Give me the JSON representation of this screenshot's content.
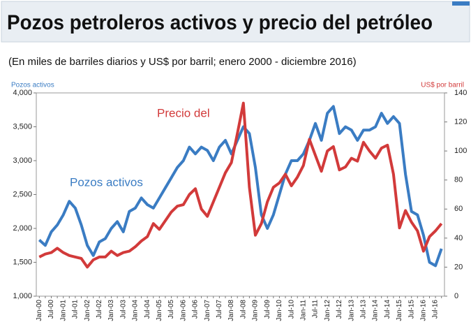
{
  "chart_data": {
    "type": "line",
    "title": "Pozos petroleros activos y precio del petróleo",
    "subtitle": "(En miles de barriles diarios y US$ por barril; enero 2000 - diciembre 2016)",
    "ylabel": "Pozos activos",
    "y2label": "US$ por barril",
    "categories": [
      "Jan-00",
      null,
      "Jul-00",
      null,
      "Jan-01",
      null,
      "Jul-01",
      null,
      "Jan-02",
      null,
      "Jul-02",
      null,
      "Jan-03",
      null,
      "Jul-03",
      null,
      "Jan-04",
      null,
      "Jul-04",
      null,
      "Jan-05",
      null,
      "Jul-05",
      null,
      "Jan-06",
      null,
      "Jul-06",
      null,
      "Jan-07",
      null,
      "Jul-07",
      null,
      "Jan-08",
      null,
      "Jul-08",
      null,
      "Jan-09",
      null,
      "Jul-09",
      null,
      "Jan-10",
      null,
      "Jul-10",
      null,
      "Jan-11",
      null,
      "Jul-11",
      null,
      "Jan-12",
      null,
      "Jul-12",
      null,
      "Jan-13",
      null,
      "Jul-13",
      null,
      "Jan-14",
      null,
      "Jul-14",
      null,
      "Jan-15",
      null,
      "Jul-15",
      null,
      "Jan-16",
      null,
      "Jul-16",
      null
    ],
    "series": [
      {
        "name": "Pozos activos",
        "color": "#3a7cc3",
        "axis": "y",
        "values": [
          1830,
          1750,
          1950,
          2050,
          2200,
          2400,
          2300,
          2050,
          1750,
          1600,
          1800,
          1850,
          2000,
          2100,
          1950,
          2250,
          2300,
          2450,
          2350,
          2300,
          2450,
          2600,
          2750,
          2900,
          3000,
          3200,
          3100,
          3200,
          3150,
          3000,
          3200,
          3300,
          3100,
          3300,
          3500,
          3400,
          2900,
          2200,
          2000,
          2200,
          2500,
          2800,
          3000,
          3000,
          3100,
          3300,
          3550,
          3300,
          3700,
          3800,
          3400,
          3500,
          3450,
          3300,
          3450,
          3450,
          3500,
          3700,
          3550,
          3650,
          3550,
          2800,
          2250,
          2200,
          1900,
          1500,
          1450,
          1700
        ]
      },
      {
        "name": "Precio del",
        "color": "#d23a3a",
        "axis": "y2",
        "values": [
          27,
          29,
          30,
          33,
          30,
          28,
          27,
          26,
          20,
          25,
          27,
          27,
          31,
          28,
          30,
          31,
          34,
          38,
          41,
          50,
          46,
          52,
          58,
          62,
          63,
          70,
          74,
          60,
          55,
          65,
          75,
          85,
          92,
          112,
          133,
          75,
          42,
          50,
          65,
          75,
          78,
          84,
          76,
          82,
          90,
          108,
          97,
          86,
          100,
          103,
          87,
          89,
          95,
          93,
          106,
          100,
          95,
          102,
          104,
          84,
          47,
          59,
          51,
          45,
          31,
          41,
          45,
          50
        ]
      }
    ],
    "ylim": [
      1000,
      4000
    ],
    "yticks": [
      {
        "value": 1000,
        "label": "1,000"
      },
      {
        "value": 1500,
        "label": "1,500"
      },
      {
        "value": 2000,
        "label": "2,000"
      },
      {
        "value": 2500,
        "label": "2,500"
      },
      {
        "value": 3000,
        "label": "3,000"
      },
      {
        "value": 3500,
        "label": "3,500"
      },
      {
        "value": 4000,
        "label": "4,000"
      }
    ],
    "y2lim": [
      0,
      140
    ],
    "y2ticks": [
      0,
      20,
      40,
      60,
      80,
      100,
      120,
      140
    ]
  }
}
